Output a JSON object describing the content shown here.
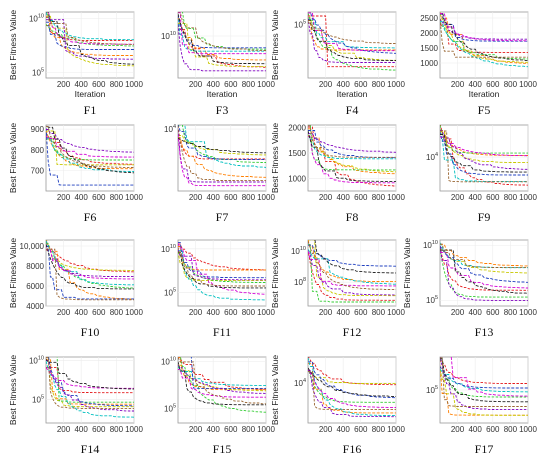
{
  "figure": {
    "axis_labels": {
      "x": "Iteration",
      "y": "Best Fitness Value"
    },
    "series_colors": [
      "#e41a1c",
      "#ff7f00",
      "#c8c800",
      "#33cc33",
      "#00bfbf",
      "#1f3fbf",
      "#7f00bf",
      "#d400d4",
      "#222222",
      "#996633"
    ]
  },
  "chart_data": [
    {
      "id": "F1",
      "type": "line",
      "caption": "F1",
      "yscale": "log",
      "ylim": [
        30000,
        40000000000
      ],
      "yticks": [
        {
          "v": 100000,
          "t": "10^5"
        },
        {
          "v": 10000000000,
          "t": "10^10"
        }
      ],
      "xticks": [
        200,
        400,
        600,
        800,
        1000
      ],
      "ytitle": true,
      "xtitle": true
    },
    {
      "id": "F3",
      "type": "line",
      "caption": "F3",
      "yscale": "log",
      "ylim": [
        1000,
        100000000000000.0
      ],
      "yticks": [
        {
          "v": 10000000000,
          "t": "10^10"
        }
      ],
      "xticks": [
        200,
        400,
        600,
        800,
        1000
      ],
      "ytitle": false,
      "xtitle": true
    },
    {
      "id": "F4",
      "type": "line",
      "caption": "F4",
      "yscale": "log",
      "ylim": [
        300,
        400000
      ],
      "yticks": [
        {
          "v": 100000,
          "t": "10^5"
        }
      ],
      "xticks": [
        200,
        400,
        600,
        800,
        1000
      ],
      "ytitle": true,
      "xtitle": true
    },
    {
      "id": "F5",
      "type": "line",
      "caption": "F5",
      "yscale": "linear",
      "ylim": [
        500,
        2700
      ],
      "yticks": [
        {
          "v": 1000,
          "t": "1000"
        },
        {
          "v": 1500,
          "t": "1500"
        },
        {
          "v": 2000,
          "t": "2000"
        },
        {
          "v": 2500,
          "t": "2500"
        }
      ],
      "xticks": [
        200,
        400,
        600,
        800,
        1000
      ],
      "ytitle": false,
      "xtitle": true
    },
    {
      "id": "F6",
      "type": "line",
      "caption": "F6",
      "yscale": "linear",
      "ylim": [
        600,
        920
      ],
      "yticks": [
        {
          "v": 700,
          "t": "700"
        },
        {
          "v": 800,
          "t": "800"
        },
        {
          "v": 900,
          "t": "900"
        }
      ],
      "xticks": [
        200,
        400,
        600,
        800,
        1000
      ],
      "ytitle": true,
      "xtitle": false
    },
    {
      "id": "F7",
      "type": "line",
      "caption": "F7",
      "yscale": "log",
      "ylim": [
        600,
        12000
      ],
      "yticks": [
        {
          "v": 10000,
          "t": "10^4"
        }
      ],
      "xticks": [
        200,
        400,
        600,
        800,
        1000
      ],
      "ytitle": false,
      "xtitle": false
    },
    {
      "id": "F8",
      "type": "line",
      "caption": "F8",
      "yscale": "linear",
      "ylim": [
        750,
        2050
      ],
      "yticks": [
        {
          "v": 1000,
          "t": "1000"
        },
        {
          "v": 1500,
          "t": "1500"
        },
        {
          "v": 2000,
          "t": "2000"
        }
      ],
      "xticks": [
        200,
        400,
        600,
        800,
        1000
      ],
      "ytitle": true,
      "xtitle": false
    },
    {
      "id": "F9",
      "type": "line",
      "caption": "F9",
      "yscale": "log",
      "ylim": [
        1500,
        60000
      ],
      "yticks": [
        {
          "v": 10000,
          "t": "10^4"
        }
      ],
      "xticks": [
        200,
        400,
        600,
        800,
        1000
      ],
      "ytitle": false,
      "xtitle": false
    },
    {
      "id": "F10",
      "type": "line",
      "caption": "F10",
      "yscale": "linear",
      "ylim": [
        4000,
        10600
      ],
      "yticks": [
        {
          "v": 4000,
          "t": "4000"
        },
        {
          "v": 6000,
          "t": "6000"
        },
        {
          "v": 8000,
          "t": "8000"
        },
        {
          "v": 10000,
          "t": "10,000"
        }
      ],
      "xticks": [
        200,
        400,
        600,
        800,
        1000
      ],
      "ytitle": true,
      "xtitle": false
    },
    {
      "id": "F11",
      "type": "line",
      "caption": "F11",
      "yscale": "log",
      "ylim": [
        3000,
        100000000000.0
      ],
      "yticks": [
        {
          "v": 100000,
          "t": "10^5"
        },
        {
          "v": 10000000000,
          "t": "10^10"
        }
      ],
      "xticks": [
        200,
        400,
        600,
        800,
        1000
      ],
      "ytitle": false,
      "xtitle": false
    },
    {
      "id": "F12",
      "type": "line",
      "caption": "F12",
      "yscale": "log",
      "ylim": [
        3000000,
        50000000000
      ],
      "yticks": [
        {
          "v": 100000000,
          "t": "10^8"
        },
        {
          "v": 10000000000,
          "t": "10^10"
        }
      ],
      "xticks": [
        200,
        400,
        600,
        800,
        1000
      ],
      "ytitle": true,
      "xtitle": false
    },
    {
      "id": "F13",
      "type": "line",
      "caption": "F13",
      "yscale": "log",
      "ylim": [
        30000,
        30000000000
      ],
      "yticks": [
        {
          "v": 100000,
          "t": "10^5"
        },
        {
          "v": 10000000000,
          "t": "10^10"
        }
      ],
      "xticks": [
        200,
        400,
        600,
        800,
        1000
      ],
      "ytitle": true,
      "xtitle": false
    },
    {
      "id": "F14",
      "type": "line",
      "caption": "F14",
      "yscale": "log",
      "ylim": [
        100,
        30000000000
      ],
      "yticks": [
        {
          "v": 100000,
          "t": "10^5"
        },
        {
          "v": 10000000000,
          "t": "10^10"
        }
      ],
      "xticks": [
        200,
        400,
        600,
        800,
        1000
      ],
      "ytitle": true,
      "xtitle": false
    },
    {
      "id": "F15",
      "type": "line",
      "caption": "F15",
      "yscale": "log",
      "ylim": [
        3000,
        30000000000
      ],
      "yticks": [
        {
          "v": 100000,
          "t": "10^5"
        },
        {
          "v": 10000000000,
          "t": "10^10"
        }
      ],
      "xticks": [
        200,
        400,
        600,
        800,
        1000
      ],
      "ytitle": false,
      "xtitle": false
    },
    {
      "id": "F16",
      "type": "line",
      "caption": "F16",
      "yscale": "log",
      "ylim": [
        100,
        200000
      ],
      "yticks": [
        {
          "v": 10000,
          "t": "10^4"
        }
      ],
      "xticks": [
        200,
        400,
        600,
        800,
        1000
      ],
      "ytitle": true,
      "xtitle": false
    },
    {
      "id": "F17",
      "type": "line",
      "caption": "F17",
      "yscale": "log",
      "ylim": [
        100,
        100000000
      ],
      "yticks": [
        {
          "v": 100000,
          "t": "10^5"
        }
      ],
      "xticks": [
        200,
        400,
        600,
        800,
        1000
      ],
      "ytitle": false,
      "xtitle": false
    }
  ]
}
